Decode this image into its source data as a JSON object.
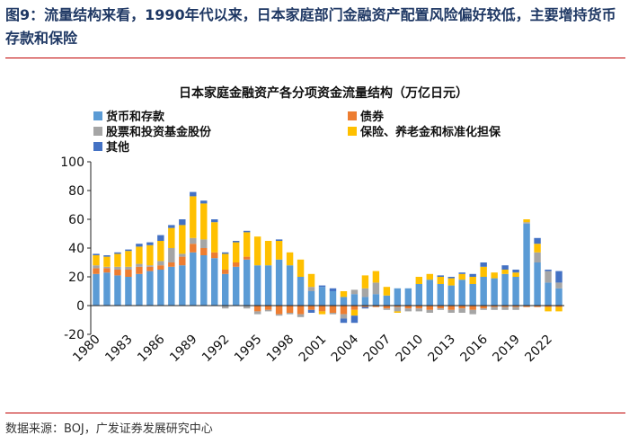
{
  "figure_title": "图9：流量结构来看，1990年代以来，日本家庭部门金融资产配置风险偏好较低，主要增持货币存款和保险",
  "source": "数据来源：BOJ，广发证券发展研究中心",
  "chart_data": {
    "type": "bar",
    "stacked": true,
    "title": "日本家庭金融资产各分项资金流量结构（万亿日元）",
    "xlabel": "",
    "ylabel": "",
    "ylim": [
      -20,
      100
    ],
    "yticks": [
      -20,
      0,
      20,
      40,
      60,
      80,
      100
    ],
    "grid": false,
    "legend_position": "top",
    "x_tick_labels": [
      "1980",
      "1983",
      "1986",
      "1989",
      "1992",
      "1995",
      "1998",
      "2001",
      "2004",
      "2007",
      "2010",
      "2013",
      "2016",
      "2019",
      "2022"
    ],
    "years": [
      1980,
      1981,
      1982,
      1983,
      1984,
      1985,
      1986,
      1987,
      1988,
      1989,
      1990,
      1991,
      1992,
      1993,
      1994,
      1995,
      1996,
      1997,
      1998,
      1999,
      2000,
      2001,
      2002,
      2003,
      2004,
      2005,
      2006,
      2007,
      2008,
      2009,
      2010,
      2011,
      2012,
      2013,
      2014,
      2015,
      2016,
      2017,
      2018,
      2019,
      2020,
      2021,
      2022,
      2023
    ],
    "series": [
      {
        "name": "货币和存款",
        "color": "#5b9bd5",
        "values": [
          22,
          23,
          21,
          20,
          22,
          24,
          25,
          27,
          28,
          37,
          35,
          33,
          22,
          27,
          32,
          28,
          28,
          32,
          28,
          20,
          10,
          13,
          10,
          6,
          8,
          6,
          8,
          7,
          12,
          12,
          15,
          18,
          15,
          14,
          18,
          15,
          20,
          19,
          22,
          20,
          57,
          30,
          16,
          12
        ]
      },
      {
        "name": "债券",
        "color": "#ed7d31",
        "values": [
          4,
          3,
          4,
          5,
          5,
          3,
          3,
          3,
          6,
          6,
          5,
          4,
          3,
          3,
          2,
          -4,
          -3,
          -6,
          -5,
          -6,
          -3,
          -4,
          -5,
          -6,
          -3,
          -1,
          -1,
          -2,
          -1,
          -2,
          -2,
          -3,
          -2,
          -3,
          -2,
          -3,
          -2,
          -1,
          -1,
          -1,
          -1,
          -1,
          -1,
          -1
        ]
      },
      {
        "name": "股票和投资基金股份",
        "color": "#a5a5a5",
        "values": [
          2,
          1,
          2,
          2,
          2,
          1,
          3,
          10,
          2,
          4,
          6,
          0,
          -2,
          0,
          -2,
          -2,
          -1,
          -1,
          -1,
          -2,
          3,
          0,
          -1,
          -3,
          3,
          6,
          8,
          -1,
          -3,
          -2,
          -2,
          -2,
          -1,
          -2,
          -3,
          -3,
          -1,
          -2,
          -2,
          -2,
          1,
          7,
          8,
          4
        ]
      },
      {
        "name": "保险、养老金和标准化担保",
        "color": "#ffc000",
        "values": [
          7,
          7,
          9,
          11,
          12,
          14,
          14,
          14,
          20,
          29,
          25,
          21,
          11,
          14,
          17,
          20,
          17,
          13,
          9,
          12,
          9,
          -2,
          0,
          4,
          -4,
          9,
          8,
          6,
          -1,
          0,
          5,
          4,
          5,
          5,
          4,
          5,
          7,
          4,
          3,
          3,
          2,
          6,
          -3,
          -3
        ]
      },
      {
        "name": "其他",
        "color": "#4472c4",
        "values": [
          1,
          1,
          1,
          1,
          2,
          2,
          4,
          2,
          4,
          3,
          2,
          2,
          1,
          1,
          1,
          0,
          0,
          1,
          0,
          0,
          -2,
          1,
          2,
          -3,
          -5,
          -1,
          0,
          0,
          0,
          0,
          0,
          0,
          1,
          1,
          1,
          2,
          3,
          0,
          3,
          2,
          0,
          4,
          1,
          8
        ]
      }
    ]
  }
}
